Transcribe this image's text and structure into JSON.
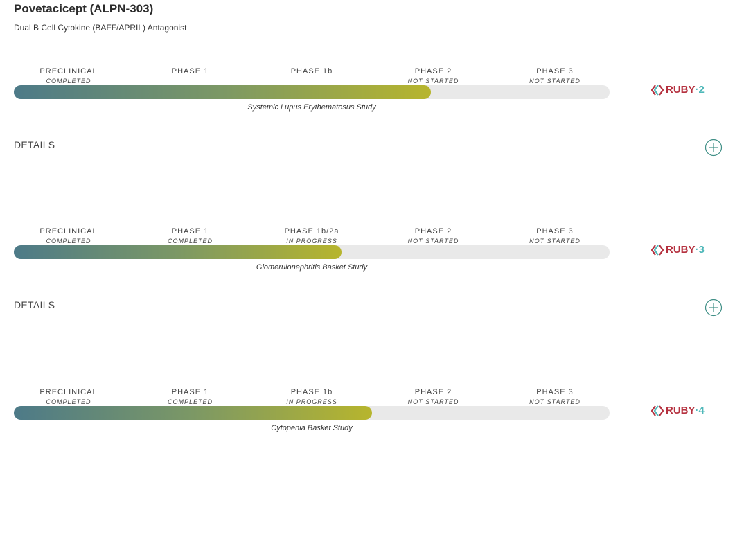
{
  "header": {
    "title": "Povetacicept (ALPN-303)",
    "subtitle": "Dual B Cell Cytokine (BAFF/APRIL) Antagonist"
  },
  "programs": [
    {
      "phases": [
        {
          "name": "PRECLINICAL",
          "status": "COMPLETED"
        },
        {
          "name": "PHASE 1"
        },
        {
          "name": "PHASE 1b"
        },
        {
          "name": "PHASE 2",
          "status": "NOT STARTED"
        },
        {
          "name": "PHASE 3",
          "status": "NOT STARTED"
        }
      ],
      "study": "Systemic Lupus Erythematosus Study",
      "logo": {
        "name": "RUBY",
        "suffix": "·2"
      },
      "details": "DETAILS"
    },
    {
      "phases": [
        {
          "name": "PRECLINICAL",
          "status": "COMPLETED"
        },
        {
          "name": "PHASE 1",
          "status": "COMPLETED"
        },
        {
          "name": "PHASE 1b/2a",
          "status": "IN PROGRESS"
        },
        {
          "name": "PHASE 2",
          "status": "NOT STARTED"
        },
        {
          "name": "PHASE 3",
          "status": "NOT STARTED"
        }
      ],
      "study": "Glomerulonephritis Basket Study",
      "logo": {
        "name": "RUBY",
        "suffix": "·3"
      },
      "details": "DETAILS"
    },
    {
      "phases": [
        {
          "name": "PRECLINICAL",
          "status": "COMPLETED"
        },
        {
          "name": "PHASE 1",
          "status": "COMPLETED"
        },
        {
          "name": "PHASE 1b",
          "status": "IN PROGRESS"
        },
        {
          "name": "PHASE 2",
          "status": "NOT STARTED"
        },
        {
          "name": "PHASE 3",
          "status": "NOT STARTED"
        }
      ],
      "study": "Cytopenia Basket Study",
      "logo": {
        "name": "RUBY",
        "suffix": "·4"
      }
    }
  ]
}
